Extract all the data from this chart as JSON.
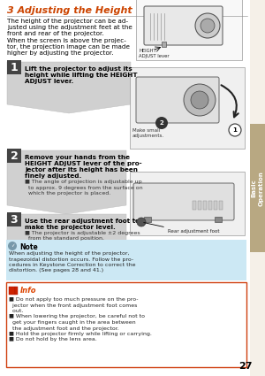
{
  "page_num": "27",
  "title": "3 Adjusting the Height",
  "title_color": "#cc4400",
  "bg_color": "#f5f0e8",
  "content_bg": "#ffffff",
  "right_tab_color": "#b8a882",
  "right_tab_text": "Basic\nOperation",
  "intro_text_lines": [
    "The height of the projector can be ad-",
    "justed using the adjustment feet at the",
    "front and rear of the projector.",
    "When the screen is above the projec-",
    "tor, the projection image can be made",
    "higher by adjusting the projector."
  ],
  "step1_bold": [
    "Lift the projector to adjust its",
    "height while lifting the HEIGHT",
    "ADJUST lever."
  ],
  "step2_bold": [
    "Remove your hands from the",
    "HEIGHT ADJUST lever of the pro-",
    "jector after its height has been",
    "finely adjusted."
  ],
  "step2_body": [
    "■ The angle of projection is adjustable up",
    "  to approx. 9 degrees from the surface on",
    "  which the projector is placed."
  ],
  "step3_bold": [
    "Use the rear adjustment foot to",
    "make the projector level."
  ],
  "step3_body": [
    "■ The projector is adjustable ±2 degrees",
    "  from the standard position."
  ],
  "note_bg": "#cce8f4",
  "note_title": "Note",
  "note_lines": [
    "When adjusting the height of the projector,",
    "trapezoidal distortion occurs. Follow the pro-",
    "cedures in Keystone Correction to correct the",
    "distortion. (See pages 28 and 41.)"
  ],
  "info_border": "#d04010",
  "info_title": "Info",
  "info_title_color": "#dd4400",
  "info_lines": [
    "■ Do not apply too much pressure on the pro-",
    "  jector when the front adjustment foot comes",
    "  out.",
    "■ When lowering the projector, be careful not to",
    "  get your fingers caught in the area between",
    "  the adjustment foot and the projector.",
    "■ Hold the projector firmly while lifting or carrying.",
    "■ Do not hold by the lens area."
  ],
  "height_label": "HEIGHT\nADJUST lever",
  "make_small": "Make small\nadjustments.",
  "rear_label": "Rear adjustment foot",
  "step_chevron_color": "#d0d0d0",
  "step_num_bg": "#444444"
}
